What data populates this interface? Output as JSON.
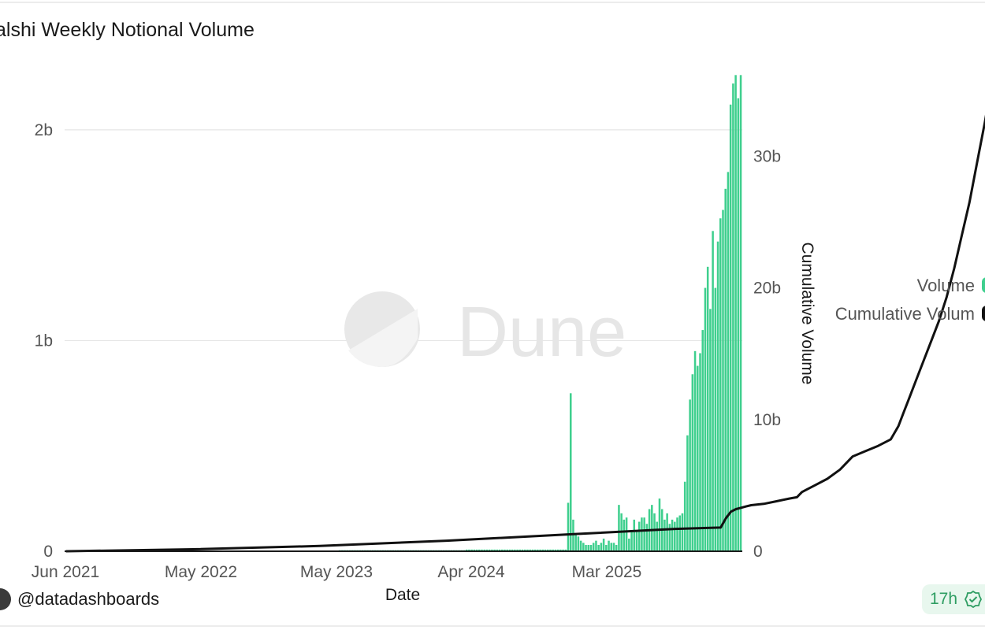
{
  "chart_data": {
    "type": "bar",
    "title": "alshi Weekly Notional Volume",
    "xlabel": "Date",
    "ylabel": "Volume",
    "y2label": "Cumulative Volume",
    "ylim": [
      0,
      2.25
    ],
    "y2lim": [
      0,
      36
    ],
    "units": "billions",
    "yticks": [
      {
        "v": 0,
        "label": "0"
      },
      {
        "v": 1,
        "label": "1b"
      },
      {
        "v": 2,
        "label": "2b"
      }
    ],
    "y2ticks": [
      {
        "v": 0,
        "label": "0"
      },
      {
        "v": 10,
        "label": "10b"
      },
      {
        "v": 20,
        "label": "20b"
      },
      {
        "v": 30,
        "label": "30b"
      }
    ],
    "xticks": [
      "Jun 2021",
      "May 2022",
      "May 2023",
      "Apr 2024",
      "Mar 2025"
    ],
    "legend": {
      "placement": "right",
      "labels": [
        "Volume",
        "Cumulative Volum"
      ]
    },
    "grid": true,
    "series": [
      {
        "name": "Volume",
        "kind": "bar",
        "color": "#3fcf8e",
        "values": [
          0.003,
          0.003,
          0.003,
          0.003,
          0.003,
          0.003,
          0.003,
          0.003,
          0.003,
          0.003,
          0.003,
          0.003,
          0.003,
          0.003,
          0.003,
          0.003,
          0.003,
          0.003,
          0.003,
          0.003,
          0.003,
          0.003,
          0.003,
          0.003,
          0.003,
          0.003,
          0.003,
          0.003,
          0.003,
          0.003,
          0.003,
          0.003,
          0.003,
          0.003,
          0.003,
          0.003,
          0.003,
          0.003,
          0.003,
          0.003,
          0.003,
          0.003,
          0.003,
          0.003,
          0.003,
          0.003,
          0.003,
          0.003,
          0.003,
          0.003,
          0.003,
          0.003,
          0.003,
          0.003,
          0.003,
          0.003,
          0.003,
          0.003,
          0.003,
          0.003,
          0.003,
          0.003,
          0.003,
          0.003,
          0.003,
          0.003,
          0.003,
          0.003,
          0.003,
          0.003,
          0.003,
          0.003,
          0.003,
          0.003,
          0.003,
          0.003,
          0.003,
          0.003,
          0.003,
          0.003,
          0.003,
          0.003,
          0.003,
          0.003,
          0.003,
          0.003,
          0.003,
          0.003,
          0.003,
          0.003,
          0.003,
          0.003,
          0.003,
          0.003,
          0.003,
          0.003,
          0.003,
          0.003,
          0.003,
          0.003,
          0.003,
          0.003,
          0.003,
          0.003,
          0.003,
          0.003,
          0.003,
          0.003,
          0.005,
          0.005,
          0.005,
          0.005,
          0.005,
          0.005,
          0.005,
          0.005,
          0.005,
          0.005,
          0.005,
          0.005,
          0.005,
          0.005,
          0.005,
          0.005,
          0.005,
          0.005,
          0.005,
          0.005,
          0.005,
          0.005,
          0.005,
          0.005,
          0.005,
          0.005,
          0.005,
          0.005,
          0.005,
          0.005,
          0.005,
          0.005,
          0.005,
          0.005,
          0.005,
          0.005,
          0.005,
          0.005,
          0.005,
          0.005,
          0.005,
          0.005,
          0.005,
          0.005,
          0.005,
          0.005,
          0.005,
          0.005,
          0.005,
          0.005,
          0.008,
          0.008,
          0.008,
          0.008,
          0.008,
          0.008,
          0.008,
          0.008,
          0.008,
          0.008,
          0.008,
          0.008,
          0.008,
          0.008,
          0.008,
          0.008,
          0.008,
          0.008,
          0.008,
          0.008,
          0.008,
          0.008,
          0.008,
          0.008,
          0.008,
          0.008,
          0.008,
          0.008,
          0.008,
          0.008,
          0.008,
          0.008,
          0.008,
          0.008,
          0.008,
          0.008,
          0.008,
          0.008,
          0.008,
          0.008,
          0.23,
          0.75,
          0.15,
          0.08,
          0.07,
          0.05,
          0.04,
          0.03,
          0.03,
          0.03,
          0.04,
          0.05,
          0.03,
          0.04,
          0.06,
          0.03,
          0.05,
          0.04,
          0.04,
          0.03,
          0.22,
          0.18,
          0.15,
          0.16,
          0.06,
          0.1,
          0.15,
          0.1,
          0.14,
          0.16,
          0.16,
          0.13,
          0.2,
          0.22,
          0.18,
          0.14,
          0.25,
          0.2,
          0.15,
          0.18,
          0.13,
          0.15,
          0.14,
          0.16,
          0.17,
          0.18,
          0.33,
          0.55,
          0.72,
          0.84,
          0.95,
          0.88,
          0.94,
          1.05,
          1.25,
          1.35,
          1.15,
          1.52,
          1.25,
          1.47,
          1.58,
          1.62,
          1.72,
          1.8,
          2.12,
          2.22,
          2.26,
          2.15,
          2.26
        ]
      },
      {
        "name": "Cumulative Volum",
        "kind": "line",
        "axis": "right",
        "color": "#111111",
        "x": [
          0,
          50,
          100,
          150,
          200,
          240,
          258,
          260,
          262,
          264,
          266,
          268,
          270,
          275,
          280,
          285,
          288,
          290,
          292,
          295,
          300,
          305,
          310,
          315,
          320,
          325,
          328,
          330,
          332,
          335,
          338,
          341,
          344,
          347,
          350,
          353,
          356,
          359,
          362,
          365
        ],
        "values": [
          0,
          0.15,
          0.4,
          0.8,
          1.3,
          1.7,
          1.8,
          2.5,
          3,
          3.2,
          3.3,
          3.4,
          3.5,
          3.6,
          3.8,
          4,
          4.1,
          4.5,
          4.7,
          5,
          5.5,
          6.2,
          7.2,
          7.6,
          8,
          8.5,
          9.5,
          10.5,
          11.5,
          13,
          14.5,
          16,
          17.5,
          19.3,
          21.5,
          24,
          26.5,
          29.5,
          32.5,
          35.8
        ]
      }
    ]
  },
  "footer": {
    "handle": "@datadashboards",
    "badge_time": "17h"
  },
  "watermark": "Dune"
}
